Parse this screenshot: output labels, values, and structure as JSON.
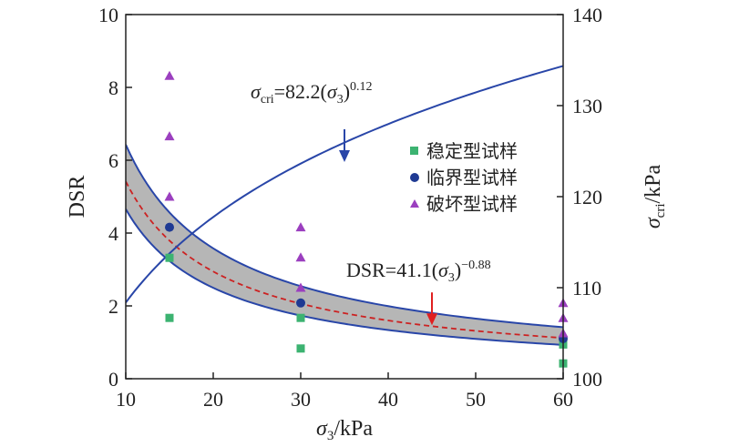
{
  "chart_data": {
    "type": "scatter",
    "title": "",
    "xlabel": {
      "main": "σ",
      "sub": "3",
      "unit": "/kPa"
    },
    "ylabel_left": "DSR",
    "ylabel_right": {
      "main": "σ",
      "sub": "cri",
      "unit": "/kPa"
    },
    "xlim": [
      10,
      60
    ],
    "ylim_left": [
      0,
      10
    ],
    "ylim_right": [
      100,
      140
    ],
    "x_ticks": [
      10,
      20,
      30,
      40,
      50,
      60
    ],
    "y_ticks_left": [
      0,
      2,
      4,
      6,
      8,
      10
    ],
    "y_ticks_right": [
      100,
      110,
      120,
      130,
      140
    ],
    "grid": false,
    "legend_position": "right",
    "colors": {
      "stable": "#3cb371",
      "critical": "#1f3a93",
      "failure": "#9b3fbf",
      "fit_curve": "#2946a8",
      "band_fill": "#a9a9a9",
      "center_line": "#cc2222",
      "arrow_blue": "#2946a8",
      "arrow_red": "#e02020"
    },
    "series": [
      {
        "name": "稳定型试样",
        "marker": "square",
        "x": [
          15,
          15,
          30,
          30,
          60,
          60,
          60
        ],
        "y": [
          3.32,
          1.67,
          1.67,
          0.83,
          0.94,
          1.05,
          0.42
        ]
      },
      {
        "name": "临界型试样",
        "marker": "circle",
        "x": [
          15,
          30,
          60
        ],
        "y": [
          4.16,
          2.08,
          1.1
        ]
      },
      {
        "name": "破坏型试样",
        "marker": "triangle",
        "x": [
          15,
          15,
          15,
          30,
          30,
          30,
          60,
          60,
          60
        ],
        "y": [
          8.32,
          6.66,
          5.0,
          4.16,
          3.33,
          2.5,
          2.08,
          1.67,
          1.25
        ]
      }
    ],
    "curves": [
      {
        "id": "dsr_fit",
        "axis": "left",
        "coef": 41.1,
        "exp": -0.88,
        "style": "dashed"
      },
      {
        "id": "band_upper",
        "axis": "left",
        "coef": 45.0,
        "exp": -0.845
      },
      {
        "id": "band_lower",
        "axis": "left",
        "coef": 37.0,
        "exp": -0.9
      },
      {
        "id": "sigma_cri",
        "axis": "right",
        "coef": 82.2,
        "exp": 0.12
      }
    ],
    "annotations": [
      {
        "id": "sigma_cri_eq",
        "parts": [
          "σ",
          "cri",
          "=82.2(",
          "σ",
          "3",
          ")",
          "0.12"
        ],
        "arrow_to": {
          "x": 35,
          "y_right": 123.8
        }
      },
      {
        "id": "dsr_eq",
        "parts": [
          "DSR=41.1(",
          "σ",
          "3",
          ")",
          "−0.88"
        ],
        "arrow_to": {
          "x": 45,
          "y_left": 1.47
        }
      }
    ]
  }
}
